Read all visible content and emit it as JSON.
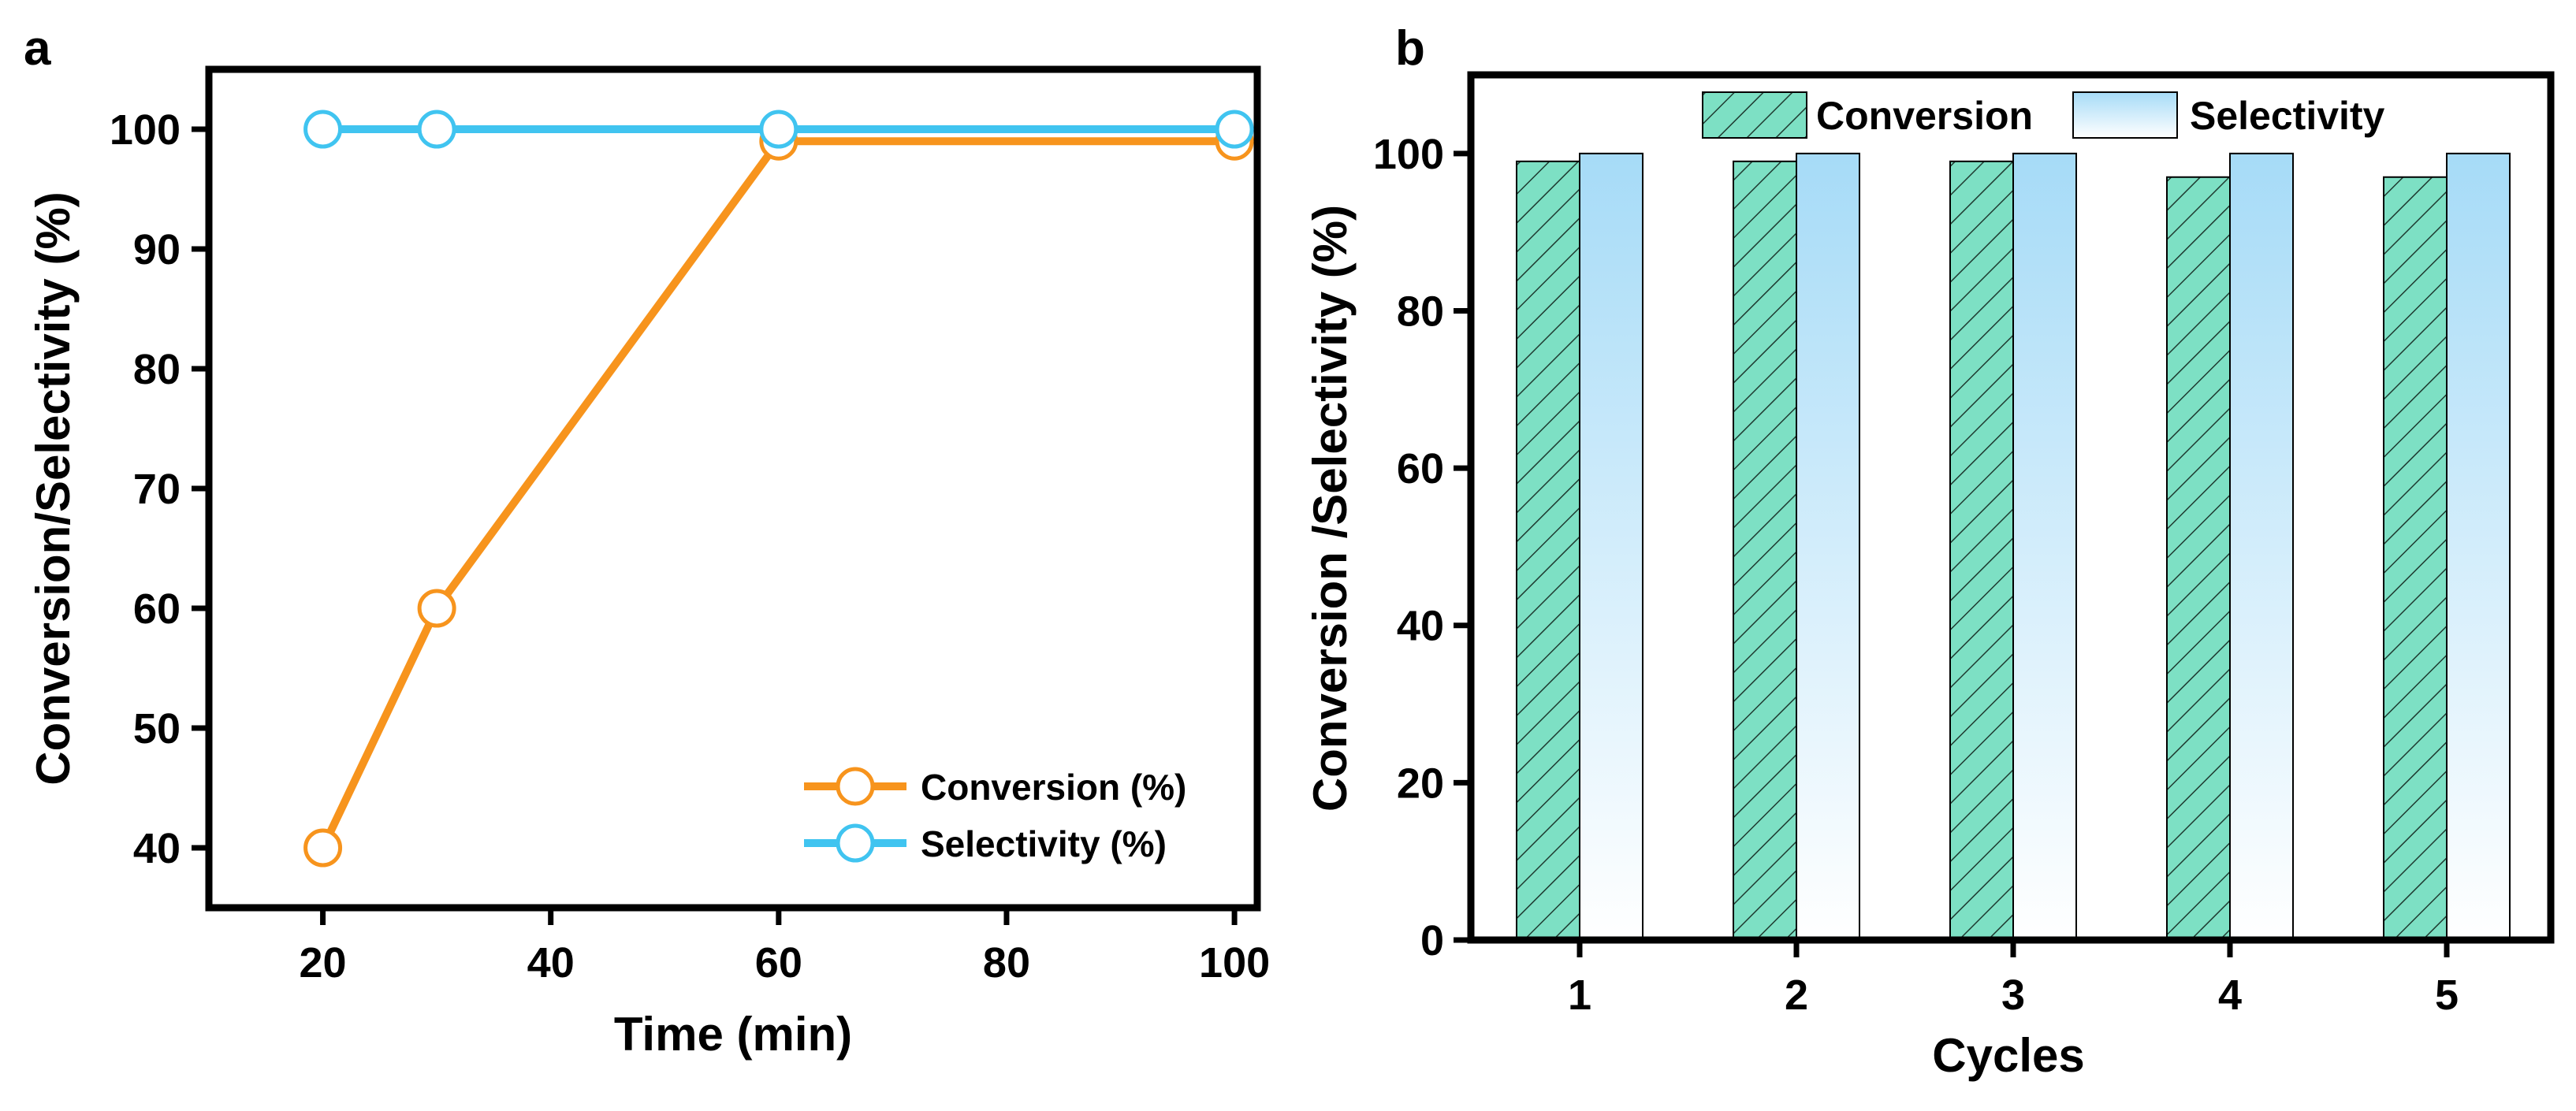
{
  "chart_data": [
    {
      "panel": "a",
      "type": "line",
      "xlabel": "Time (min)",
      "ylabel": "Conversion/Selectivity (%)",
      "xlim": [
        10,
        102
      ],
      "ylim": [
        35,
        105
      ],
      "xticks": [
        20,
        40,
        60,
        80,
        100
      ],
      "yticks": [
        40,
        50,
        60,
        70,
        80,
        90,
        100
      ],
      "grid": false,
      "legend_position": "bottom-right",
      "x": [
        20,
        30,
        60,
        100
      ],
      "series": [
        {
          "name": "Conversion (%)",
          "color": "#f7941d",
          "marker": "open-circle",
          "values": [
            40,
            60,
            99,
            99
          ]
        },
        {
          "name": "Selectivity (%)",
          "color": "#40c4f0",
          "marker": "open-circle",
          "values": [
            100,
            100,
            100,
            100
          ]
        }
      ]
    },
    {
      "panel": "b",
      "type": "bar",
      "xlabel": "Cycles",
      "ylabel": "Conversion /Selectivity (%)",
      "categories": [
        "1",
        "2",
        "3",
        "4",
        "5"
      ],
      "ylim": [
        0,
        110
      ],
      "yticks": [
        0,
        20,
        40,
        60,
        80,
        100
      ],
      "grid": false,
      "legend_position": "top",
      "series": [
        {
          "name": "Conversion",
          "color": "#7de0c4",
          "pattern": "diagonal-hatch",
          "values": [
            99,
            99,
            99,
            97,
            97
          ]
        },
        {
          "name": "Selectivity",
          "color": "#a6dbf7",
          "pattern": "vertical-gradient",
          "values": [
            100,
            100,
            100,
            100,
            100
          ]
        }
      ]
    }
  ]
}
